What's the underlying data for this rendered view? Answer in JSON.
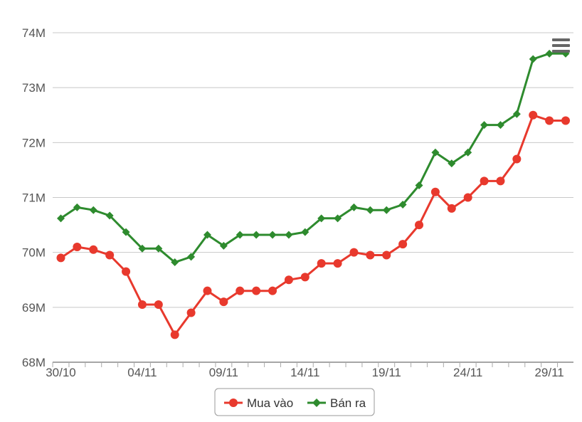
{
  "chart_data": {
    "type": "line",
    "x": [
      "30/10",
      "31/10",
      "01/11",
      "02/11",
      "03/11",
      "04/11",
      "05/11",
      "06/11",
      "07/11",
      "08/11",
      "09/11",
      "10/11",
      "11/11",
      "12/11",
      "13/11",
      "14/11",
      "15/11",
      "16/11",
      "17/11",
      "18/11",
      "19/11",
      "20/11",
      "21/11",
      "22/11",
      "23/11",
      "24/11",
      "25/11",
      "26/11",
      "27/11",
      "28/11",
      "29/11",
      "30/11"
    ],
    "xticks": [
      "30/10",
      "04/11",
      "09/11",
      "14/11",
      "19/11",
      "24/11",
      "29/11"
    ],
    "yticks": [
      "68M",
      "69M",
      "70M",
      "71M",
      "72M",
      "73M",
      "74M"
    ],
    "ylim": [
      68,
      74
    ],
    "y_unit": "M",
    "grid": true,
    "legend_position": "bottom-center",
    "series": [
      {
        "name": "Mua vào",
        "color": "#e8392d",
        "marker": "circle",
        "values": [
          69.9,
          70.1,
          70.05,
          69.95,
          69.65,
          69.05,
          69.05,
          68.5,
          68.9,
          69.3,
          69.1,
          69.3,
          69.3,
          69.3,
          69.5,
          69.55,
          69.8,
          69.8,
          70.0,
          69.95,
          69.95,
          70.15,
          70.5,
          71.1,
          70.8,
          71.0,
          71.3,
          71.3,
          71.7,
          72.5,
          72.4,
          72.4
        ]
      },
      {
        "name": "Bán ra",
        "color": "#2e8b2e",
        "marker": "diamond",
        "values": [
          70.62,
          70.82,
          70.77,
          70.67,
          70.37,
          70.07,
          70.07,
          69.82,
          69.92,
          70.32,
          70.12,
          70.32,
          70.32,
          70.32,
          70.32,
          70.37,
          70.62,
          70.62,
          70.82,
          70.77,
          70.77,
          70.87,
          71.22,
          71.82,
          71.62,
          71.82,
          72.32,
          72.32,
          72.52,
          73.52,
          73.62,
          73.62
        ]
      }
    ]
  },
  "ui": {
    "menu_icon": "hamburger-menu-icon"
  }
}
